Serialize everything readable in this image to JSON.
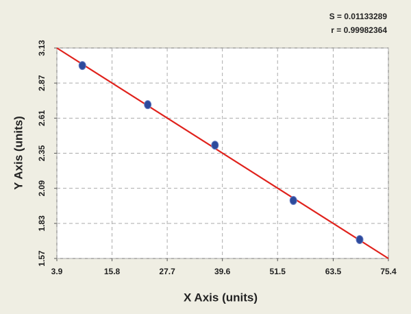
{
  "chart_data": {
    "type": "scatter",
    "xlabel": "X Axis (units)",
    "ylabel": "Y Axis (units)",
    "annotations": [
      "S = 0.01133289",
      "r = 0.99982364"
    ],
    "x": [
      9.4,
      23.5,
      38.0,
      54.9,
      69.2
    ],
    "values": [
      3.0,
      2.71,
      2.41,
      2.0,
      1.71
    ],
    "color": "#2d4a9c",
    "fit_line": {
      "x": [
        3.9,
        75.4
      ],
      "values": [
        3.13,
        1.57
      ],
      "color": "#e0221c"
    },
    "xlim": [
      3.9,
      75.4
    ],
    "xticks": [
      3.9,
      15.8,
      27.7,
      39.6,
      51.5,
      63.5,
      75.4
    ],
    "ylim": [
      1.57,
      3.13
    ],
    "yticks": [
      1.57,
      1.83,
      2.09,
      2.35,
      2.61,
      2.87,
      3.13
    ],
    "grid": true
  }
}
